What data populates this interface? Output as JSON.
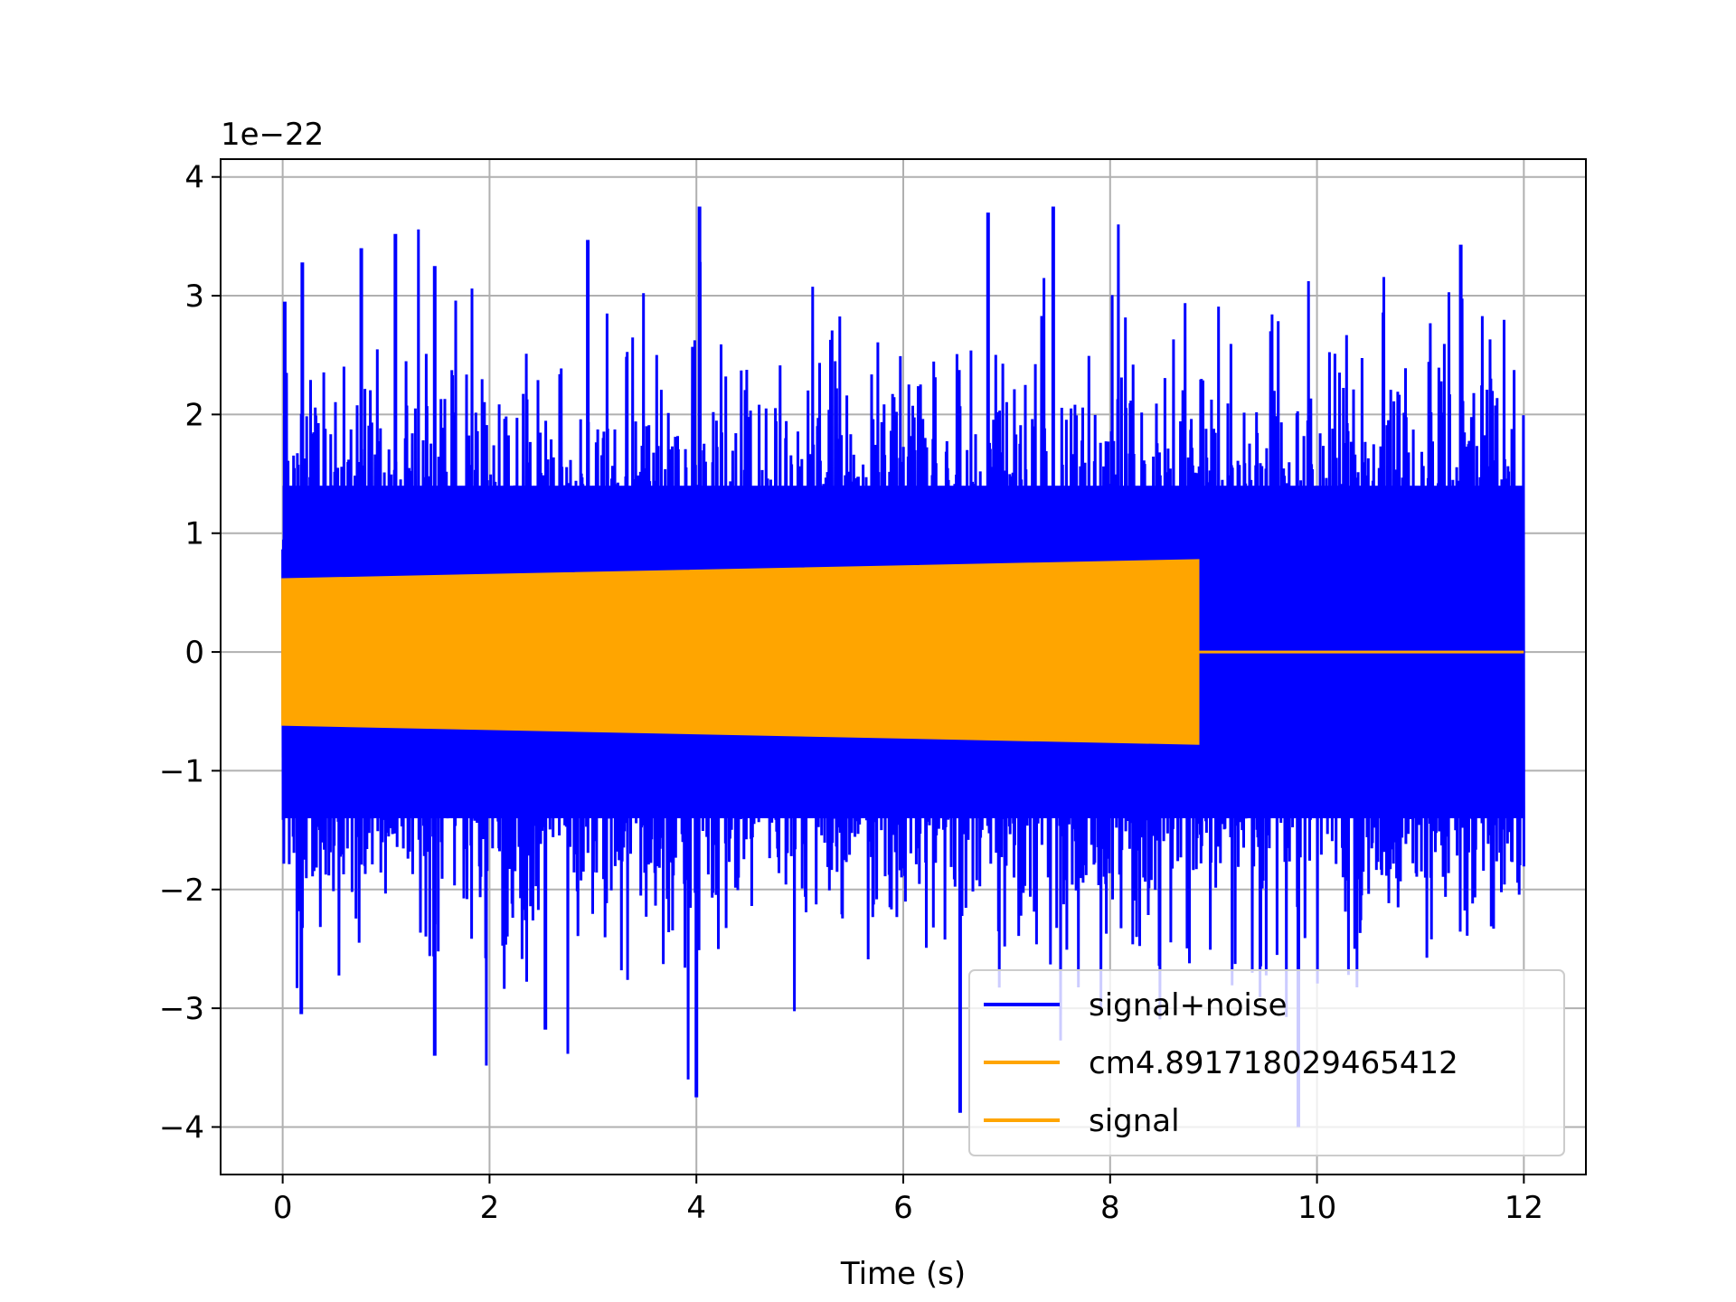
{
  "chart_data": {
    "type": "line",
    "title": "",
    "xlabel": "Time (s)",
    "ylabel": "",
    "offset_text": "1e−22",
    "xlim": [
      -0.6,
      12.6
    ],
    "ylim": [
      -4.4,
      4.15
    ],
    "xticks": [
      0,
      2,
      4,
      6,
      8,
      10,
      12
    ],
    "xtick_labels": [
      "0",
      "2",
      "4",
      "6",
      "8",
      "10",
      "12"
    ],
    "yticks": [
      -4,
      -3,
      -2,
      -1,
      0,
      1,
      2,
      3,
      4
    ],
    "ytick_labels": [
      "−4",
      "−3",
      "−2",
      "−1",
      "0",
      "1",
      "2",
      "3",
      "4"
    ],
    "grid": true,
    "legend_position": "lower right",
    "series": [
      {
        "name": "signal+noise",
        "color": "#0000ff",
        "description": "dense noise series spanning the full time range",
        "x_range": [
          0,
          12
        ],
        "peak_values": [
          {
            "x": 0.02,
            "y": 2.95
          },
          {
            "x": 0.19,
            "y": 3.28
          },
          {
            "x": 0.76,
            "y": 3.4
          },
          {
            "x": 1.09,
            "y": 3.52
          },
          {
            "x": 1.47,
            "y": 3.25
          },
          {
            "x": 2.95,
            "y": 3.47
          },
          {
            "x": 4.03,
            "y": 3.75
          },
          {
            "x": 6.82,
            "y": 3.7
          },
          {
            "x": 7.45,
            "y": 3.75
          },
          {
            "x": 11.39,
            "y": 3.43
          },
          {
            "x": 4.0,
            "y": -3.75
          },
          {
            "x": 6.55,
            "y": -3.88
          },
          {
            "x": 9.82,
            "y": -4.0
          },
          {
            "x": 0.18,
            "y": -3.05
          },
          {
            "x": 1.47,
            "y": -3.4
          },
          {
            "x": 2.54,
            "y": -3.18
          }
        ],
        "typical_envelope": 2.0
      },
      {
        "name": "cm4.891718029465412",
        "color": "#ffa500",
        "description": "chirp-like signal, amplitude grows slowly then ends",
        "x_range": [
          0,
          8.85
        ],
        "amplitude_start": 0.61,
        "amplitude_end": 0.77,
        "after_end_value": 0
      },
      {
        "name": "signal",
        "color": "#ffa500",
        "description": "same signal as above",
        "x_range": [
          0,
          8.85
        ],
        "amplitude_start": 0.61,
        "amplitude_end": 0.77,
        "after_end_value": 0
      }
    ],
    "legend": [
      {
        "label": "signal+noise",
        "color": "#0000ff"
      },
      {
        "label": "cm4.891718029465412",
        "color": "#ffa500"
      },
      {
        "label": "signal",
        "color": "#ffa500"
      }
    ]
  }
}
